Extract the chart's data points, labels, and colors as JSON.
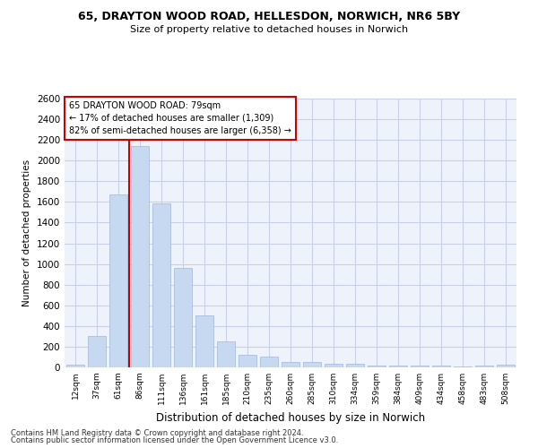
{
  "title1": "65, DRAYTON WOOD ROAD, HELLESDON, NORWICH, NR6 5BY",
  "title2": "Size of property relative to detached houses in Norwich",
  "xlabel": "Distribution of detached houses by size in Norwich",
  "ylabel": "Number of detached properties",
  "categories": [
    "12sqm",
    "37sqm",
    "61sqm",
    "86sqm",
    "111sqm",
    "136sqm",
    "161sqm",
    "185sqm",
    "210sqm",
    "235sqm",
    "260sqm",
    "285sqm",
    "310sqm",
    "334sqm",
    "359sqm",
    "384sqm",
    "409sqm",
    "434sqm",
    "458sqm",
    "483sqm",
    "508sqm"
  ],
  "values": [
    25,
    300,
    1670,
    2140,
    1590,
    960,
    500,
    250,
    120,
    100,
    50,
    50,
    35,
    35,
    20,
    20,
    20,
    20,
    5,
    20,
    25
  ],
  "bar_color": "#c6d9f0",
  "bar_edge_color": "#a0b8d8",
  "vline_x_idx": 3,
  "vline_color": "#cc0000",
  "annotation_box_text": "65 DRAYTON WOOD ROAD: 79sqm\n← 17% of detached houses are smaller (1,309)\n82% of semi-detached houses are larger (6,358) →",
  "ylim": [
    0,
    2600
  ],
  "yticks": [
    0,
    200,
    400,
    600,
    800,
    1000,
    1200,
    1400,
    1600,
    1800,
    2000,
    2200,
    2400,
    2600
  ],
  "footer1": "Contains HM Land Registry data © Crown copyright and database right 2024.",
  "footer2": "Contains public sector information licensed under the Open Government Licence v3.0.",
  "bg_color": "#eef2fb",
  "grid_color": "#c8d0e8"
}
